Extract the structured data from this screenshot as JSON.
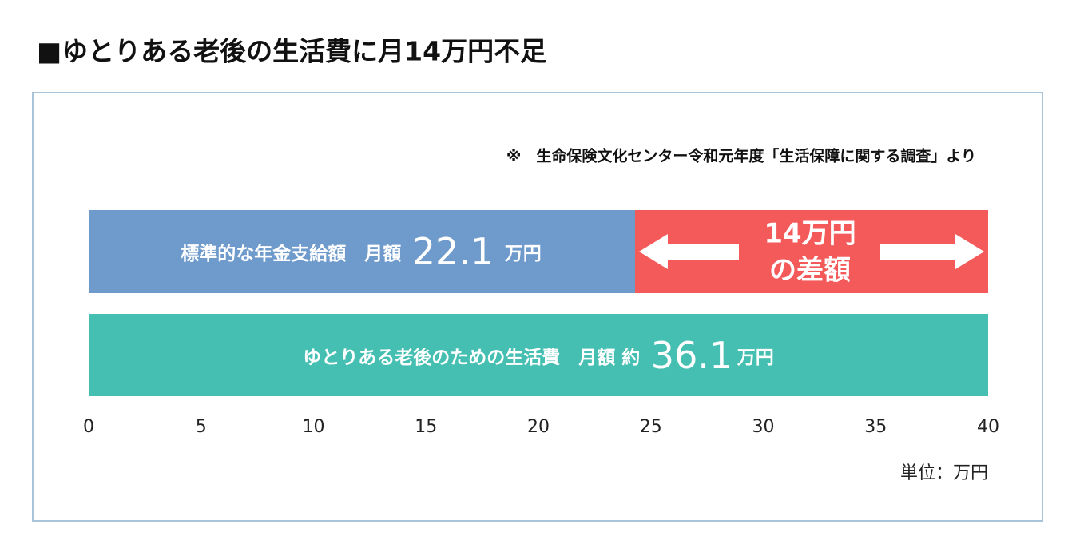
{
  "title": "■ゆとりある老後の生活費に月14万円不足",
  "note": "※　生命保険文化センター令和元年度「生活保障に関する調査」より",
  "bars": [
    {
      "label": "標準的な年金支給額　月額",
      "value": "22.1",
      "unit": "万円"
    },
    {
      "label": "ゆとりある老後のための生活費　月額 約",
      "value": "36.1",
      "unit": "万円"
    }
  ],
  "gap": {
    "line1": "14万円",
    "line2": "の差額"
  },
  "axis": {
    "ticks": [
      0,
      5,
      10,
      15,
      20,
      25,
      30,
      35,
      40
    ]
  },
  "unit_label": "単位：万円"
}
